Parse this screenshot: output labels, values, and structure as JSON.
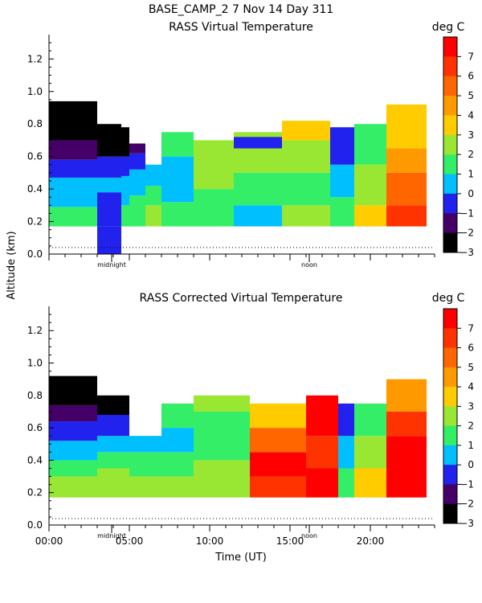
{
  "header": {
    "title": "BASE_CAMP_2    7 Nov 14 Day 311"
  },
  "y_axis_label": "Altitude (km)",
  "x_axis_label": "Time (UT)",
  "markers": {
    "midnight": "midnight",
    "noon": "noon",
    "midnight_hour": 3.9,
    "noon_hour": 16.2
  },
  "colorbar": {
    "unit": "deg C",
    "ticks": [
      "7",
      "6",
      "5",
      "4",
      "3",
      "2",
      "1",
      "0",
      "−1",
      "−2",
      "−3"
    ],
    "colors": [
      "#ff0000",
      "#ff3300",
      "#ff6600",
      "#ff9900",
      "#ffcc00",
      "#99e633",
      "#33ee66",
      "#00bfff",
      "#2222ee",
      "#440066",
      "#000000"
    ]
  },
  "chart_data": [
    {
      "type": "heatmap",
      "title": "RASS Virtual Temperature",
      "xlabel": "",
      "ylabel": "Altitude (km)",
      "xlim": [
        0,
        24
      ],
      "ylim": [
        0,
        1.35
      ],
      "yticks": [
        "0.0",
        "0.2",
        "0.4",
        "0.6",
        "0.8",
        "1.0",
        "1.2"
      ],
      "xticks": [],
      "colorbar_range": [
        -3,
        8
      ],
      "data": [
        {
          "t0": 0.0,
          "t1": 3.0,
          "bands": [
            [
              0.17,
              0.29,
              1
            ],
            [
              0.29,
              0.47,
              0
            ],
            [
              0.47,
              0.58,
              -1
            ],
            [
              0.58,
              0.7,
              -2
            ],
            [
              0.7,
              0.94,
              -3
            ]
          ]
        },
        {
          "t0": 3.0,
          "t1": 4.5,
          "bands": [
            [
              0.0,
              0.17,
              -1
            ],
            [
              0.17,
              0.38,
              -1
            ],
            [
              0.38,
              0.47,
              0
            ],
            [
              0.47,
              0.6,
              -1
            ],
            [
              0.6,
              0.8,
              -3
            ]
          ]
        },
        {
          "t0": 4.5,
          "t1": 5.0,
          "bands": [
            [
              0.17,
              0.3,
              1
            ],
            [
              0.3,
              0.48,
              0
            ],
            [
              0.48,
              0.6,
              -1
            ],
            [
              0.6,
              0.78,
              -3
            ]
          ]
        },
        {
          "t0": 5.0,
          "t1": 6.0,
          "bands": [
            [
              0.17,
              0.36,
              1
            ],
            [
              0.36,
              0.52,
              0
            ],
            [
              0.52,
              0.62,
              -1
            ],
            [
              0.62,
              0.68,
              -2
            ]
          ]
        },
        {
          "t0": 6.0,
          "t1": 7.0,
          "bands": [
            [
              0.17,
              0.3,
              2
            ],
            [
              0.3,
              0.42,
              1
            ],
            [
              0.42,
              0.55,
              0
            ]
          ]
        },
        {
          "t0": 7.0,
          "t1": 9.0,
          "bands": [
            [
              0.17,
              0.32,
              1
            ],
            [
              0.32,
              0.6,
              0
            ],
            [
              0.6,
              0.75,
              1
            ]
          ]
        },
        {
          "t0": 9.0,
          "t1": 11.5,
          "bands": [
            [
              0.17,
              0.4,
              1
            ],
            [
              0.4,
              0.7,
              2
            ]
          ]
        },
        {
          "t0": 11.5,
          "t1": 14.5,
          "bands": [
            [
              0.17,
              0.3,
              0
            ],
            [
              0.3,
              0.5,
              1
            ],
            [
              0.5,
              0.75,
              2
            ],
            [
              0.65,
              0.72,
              -1
            ]
          ]
        },
        {
          "t0": 14.5,
          "t1": 17.5,
          "bands": [
            [
              0.17,
              0.3,
              2
            ],
            [
              0.3,
              0.5,
              1
            ],
            [
              0.5,
              0.7,
              2
            ],
            [
              0.7,
              0.82,
              3
            ]
          ]
        },
        {
          "t0": 17.5,
          "t1": 19.0,
          "bands": [
            [
              0.17,
              0.35,
              1
            ],
            [
              0.35,
              0.55,
              0
            ],
            [
              0.55,
              0.78,
              -1
            ]
          ]
        },
        {
          "t0": 19.0,
          "t1": 21.0,
          "bands": [
            [
              0.17,
              0.3,
              3
            ],
            [
              0.3,
              0.55,
              2
            ],
            [
              0.55,
              0.8,
              1
            ]
          ]
        },
        {
          "t0": 21.0,
          "t1": 23.5,
          "bands": [
            [
              0.17,
              0.3,
              6
            ],
            [
              0.3,
              0.5,
              5
            ],
            [
              0.5,
              0.65,
              4
            ],
            [
              0.65,
              0.92,
              3
            ]
          ]
        }
      ]
    },
    {
      "type": "heatmap",
      "title": "RASS Corrected Virtual Temperature",
      "xlabel": "Time (UT)",
      "ylabel": "Altitude (km)",
      "xlim": [
        0,
        24
      ],
      "ylim": [
        0,
        1.35
      ],
      "yticks": [
        "0.0",
        "0.2",
        "0.4",
        "0.6",
        "0.8",
        "1.0",
        "1.2"
      ],
      "xticks": [
        "00:00",
        "05:00",
        "10:00",
        "15:00",
        "20:00"
      ],
      "colorbar_range": [
        -3,
        8
      ],
      "data": [
        {
          "t0": 0.0,
          "t1": 3.0,
          "bands": [
            [
              0.17,
              0.3,
              2
            ],
            [
              0.3,
              0.4,
              1
            ],
            [
              0.4,
              0.52,
              0
            ],
            [
              0.52,
              0.64,
              -1
            ],
            [
              0.64,
              0.74,
              -2
            ],
            [
              0.74,
              0.92,
              -3
            ]
          ]
        },
        {
          "t0": 3.0,
          "t1": 5.0,
          "bands": [
            [
              0.17,
              0.35,
              2
            ],
            [
              0.35,
              0.45,
              1
            ],
            [
              0.45,
              0.55,
              0
            ],
            [
              0.55,
              0.68,
              -1
            ],
            [
              0.68,
              0.8,
              -3
            ]
          ]
        },
        {
          "t0": 5.0,
          "t1": 7.0,
          "bands": [
            [
              0.17,
              0.3,
              2
            ],
            [
              0.3,
              0.45,
              1
            ],
            [
              0.45,
              0.55,
              0
            ]
          ]
        },
        {
          "t0": 7.0,
          "t1": 9.0,
          "bands": [
            [
              0.17,
              0.3,
              2
            ],
            [
              0.3,
              0.45,
              1
            ],
            [
              0.45,
              0.6,
              0
            ],
            [
              0.6,
              0.75,
              1
            ]
          ]
        },
        {
          "t0": 9.0,
          "t1": 12.5,
          "bands": [
            [
              0.17,
              0.4,
              2
            ],
            [
              0.4,
              0.7,
              1
            ],
            [
              0.7,
              0.8,
              2
            ]
          ]
        },
        {
          "t0": 12.5,
          "t1": 16.0,
          "bands": [
            [
              0.17,
              0.3,
              6
            ],
            [
              0.3,
              0.45,
              7
            ],
            [
              0.45,
              0.6,
              5
            ],
            [
              0.6,
              0.75,
              3
            ]
          ]
        },
        {
          "t0": 16.0,
          "t1": 18.0,
          "bands": [
            [
              0.17,
              0.35,
              7
            ],
            [
              0.35,
              0.55,
              6
            ],
            [
              0.55,
              0.8,
              7
            ]
          ]
        },
        {
          "t0": 18.0,
          "t1": 19.0,
          "bands": [
            [
              0.17,
              0.35,
              1
            ],
            [
              0.35,
              0.55,
              0
            ],
            [
              0.55,
              0.75,
              -1
            ]
          ]
        },
        {
          "t0": 19.0,
          "t1": 21.0,
          "bands": [
            [
              0.17,
              0.35,
              3
            ],
            [
              0.35,
              0.55,
              2
            ],
            [
              0.55,
              0.75,
              1
            ]
          ]
        },
        {
          "t0": 21.0,
          "t1": 23.5,
          "bands": [
            [
              0.17,
              0.35,
              7
            ],
            [
              0.35,
              0.55,
              7
            ],
            [
              0.55,
              0.7,
              6
            ],
            [
              0.7,
              0.9,
              4
            ]
          ]
        }
      ]
    }
  ]
}
